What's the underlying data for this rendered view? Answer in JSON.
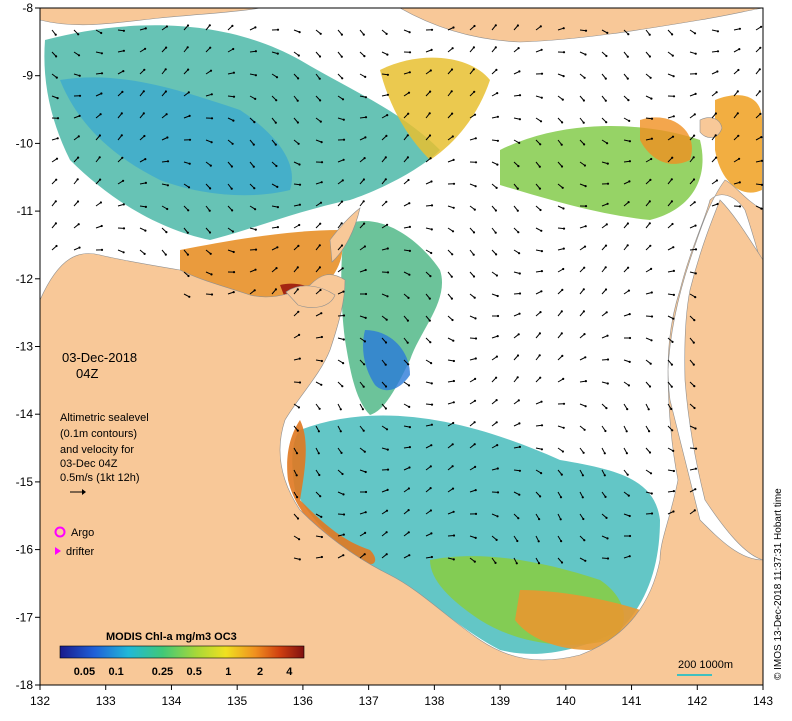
{
  "map": {
    "date": "03-Dec-2018",
    "time": "04Z",
    "legend_text": [
      "Altimetric sealevel",
      "(0.1m contours)",
      "and velocity for",
      "03-Dec 04Z",
      "0.5m/s (1kt 12h)"
    ],
    "argo_label": "Argo",
    "drifter_label": "drifter",
    "colorbar_title": "MODIS Chl-a mg/m3 OC3",
    "colorbar_ticks": [
      "0.05",
      "0.1",
      "0.25",
      "0.5",
      "1",
      "2",
      "4"
    ],
    "scale_label": "200  1000m",
    "credit": "© IMOS 13-Dec-2018 11:37:31 Hobart time",
    "x_ticks": [
      "132",
      "133",
      "134",
      "135",
      "136",
      "137",
      "138",
      "139",
      "140",
      "141",
      "142",
      "143"
    ],
    "y_ticks": [
      "-8",
      "-9",
      "-10",
      "-11",
      "-12",
      "-13",
      "-14",
      "-15",
      "-16",
      "-17",
      "-18"
    ],
    "colors": {
      "land": "#f8c898",
      "ocean": "#ffffff",
      "argo": "#ff00ff",
      "drifter": "#ff00ff",
      "scale_bar": "#40c0c0"
    }
  }
}
